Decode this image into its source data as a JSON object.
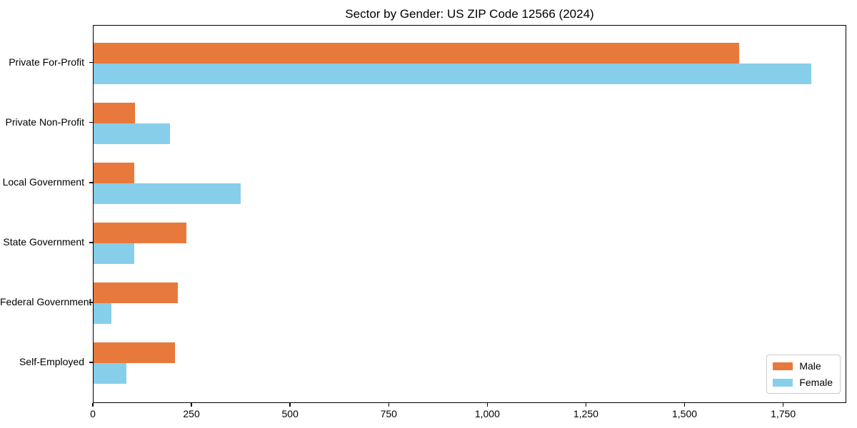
{
  "chart_data": {
    "type": "bar",
    "orientation": "horizontal",
    "title": "Sector by Gender: US ZIP Code 12566 (2024)",
    "categories": [
      "Private For-Profit",
      "Private Non-Profit",
      "Local Government",
      "State Government",
      "Federal Government",
      "Self-Employed"
    ],
    "series": [
      {
        "name": "Male",
        "color": "#E8793C",
        "values": [
          1636,
          105,
          103,
          235,
          213,
          206
        ]
      },
      {
        "name": "Female",
        "color": "#87CEEB",
        "values": [
          1819,
          194,
          373,
          103,
          46,
          84
        ]
      }
    ],
    "xlim": [
      0,
      1910
    ],
    "x_ticks": [
      0,
      250,
      500,
      750,
      1000,
      1250,
      1500,
      1750
    ],
    "x_tick_labels": [
      "0",
      "250",
      "500",
      "750",
      "1,000",
      "1,250",
      "1,500",
      "1,750"
    ],
    "xlabel": "",
    "ylabel": "",
    "grid": false,
    "legend_position": "lower right"
  }
}
